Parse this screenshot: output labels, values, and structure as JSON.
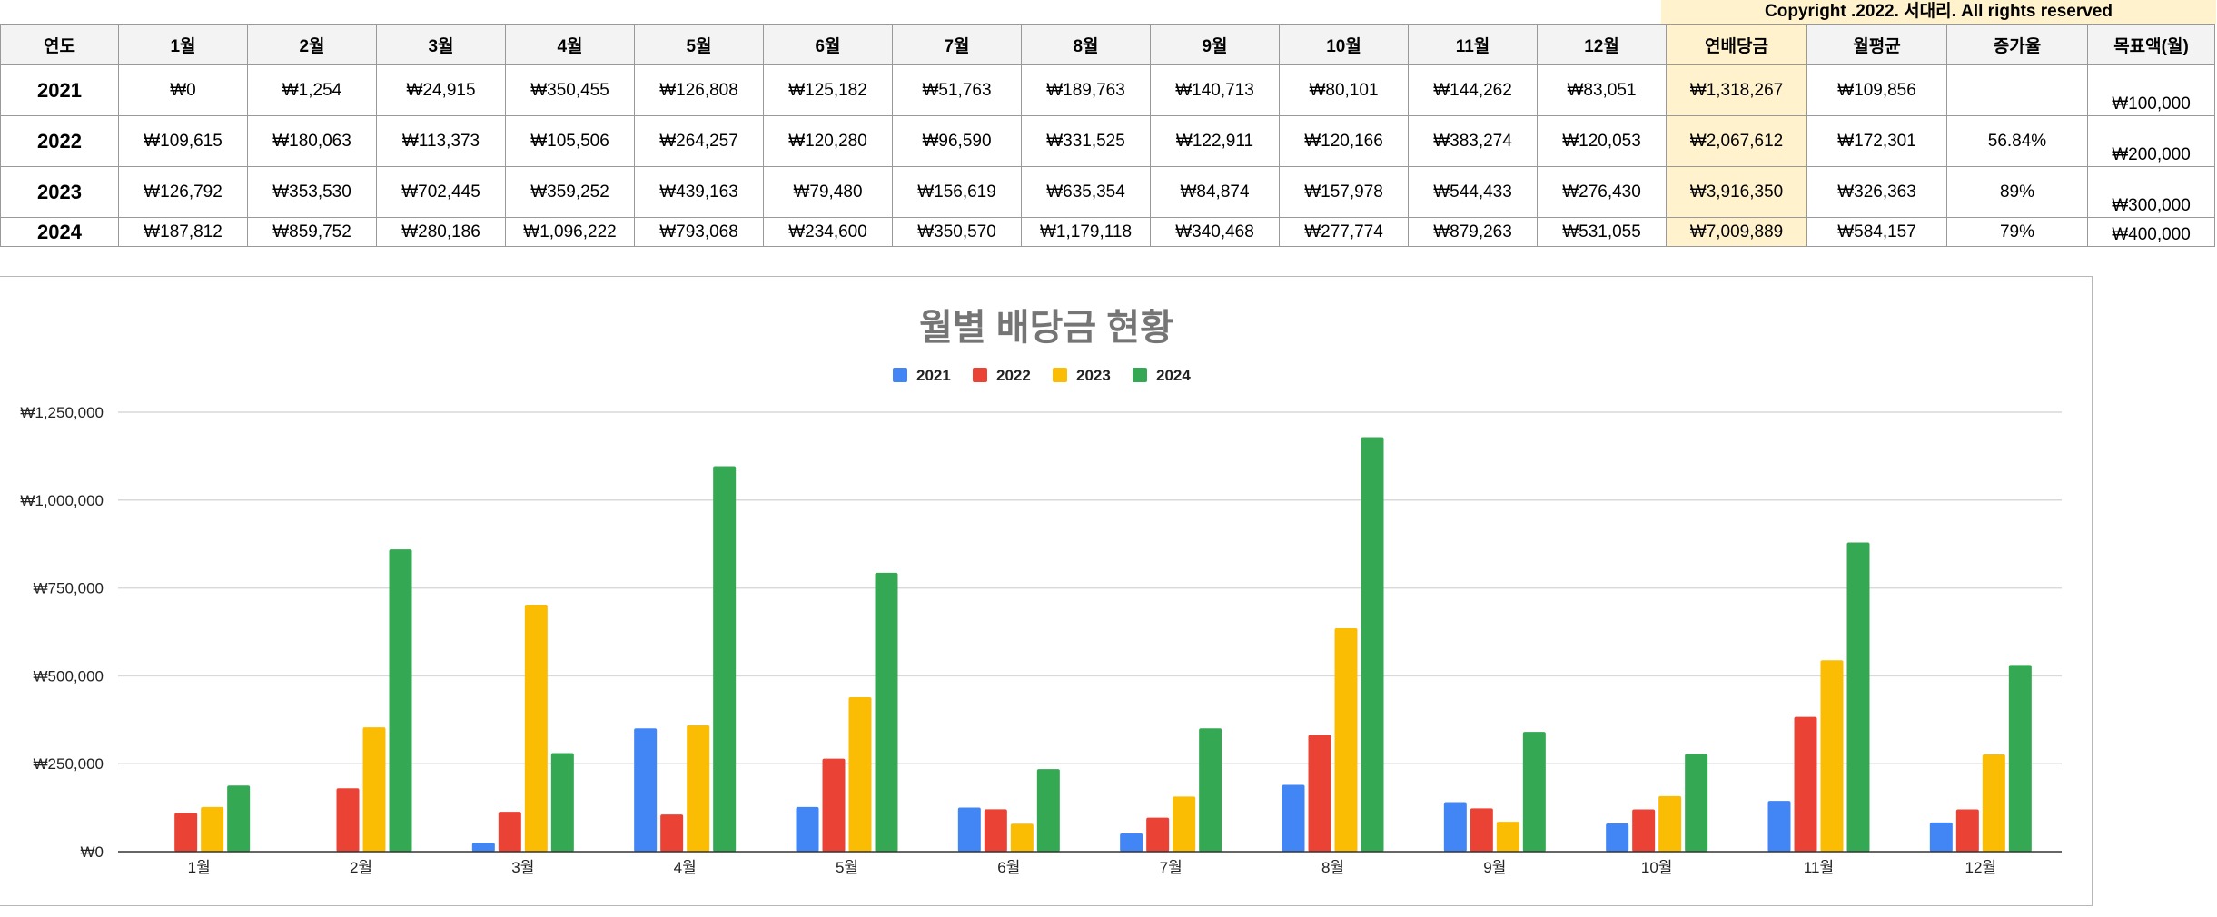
{
  "copyright": "Copyright .2022. 서대리. All rights reserved",
  "table": {
    "headers": [
      "연도",
      "1월",
      "2월",
      "3월",
      "4월",
      "5월",
      "6월",
      "7월",
      "8월",
      "9월",
      "10월",
      "11월",
      "12월",
      "연배당금",
      "월평균",
      "증가율",
      "목표액(월)"
    ],
    "rows": [
      {
        "year": "2021",
        "months": [
          "₩0",
          "₩1,254",
          "₩24,915",
          "₩350,455",
          "₩126,808",
          "₩125,182",
          "₩51,763",
          "₩189,763",
          "₩140,713",
          "₩80,101",
          "₩144,262",
          "₩83,051"
        ],
        "annual": "₩1,318,267",
        "avg": "₩109,856",
        "growth": "",
        "target": "₩100,000"
      },
      {
        "year": "2022",
        "months": [
          "₩109,615",
          "₩180,063",
          "₩113,373",
          "₩105,506",
          "₩264,257",
          "₩120,280",
          "₩96,590",
          "₩331,525",
          "₩122,911",
          "₩120,166",
          "₩383,274",
          "₩120,053"
        ],
        "annual": "₩2,067,612",
        "avg": "₩172,301",
        "growth": "56.84%",
        "target": "₩200,000"
      },
      {
        "year": "2023",
        "months": [
          "₩126,792",
          "₩353,530",
          "₩702,445",
          "₩359,252",
          "₩439,163",
          "₩79,480",
          "₩156,619",
          "₩635,354",
          "₩84,874",
          "₩157,978",
          "₩544,433",
          "₩276,430"
        ],
        "annual": "₩3,916,350",
        "avg": "₩326,363",
        "growth": "89%",
        "target": "₩300,000"
      },
      {
        "year": "2024",
        "months": [
          "₩187,812",
          "₩859,752",
          "₩280,186",
          "₩1,096,222",
          "₩793,068",
          "₩234,600",
          "₩350,570",
          "₩1,179,118",
          "₩340,468",
          "₩277,774",
          "₩879,263",
          "₩531,055"
        ],
        "annual": "₩7,009,889",
        "avg": "₩584,157",
        "growth": "79%",
        "target": "₩400,000"
      }
    ]
  },
  "chart_data": {
    "type": "bar",
    "title": "월별 배당금 현황",
    "categories": [
      "1월",
      "2월",
      "3월",
      "4월",
      "5월",
      "6월",
      "7월",
      "8월",
      "9월",
      "10월",
      "11월",
      "12월"
    ],
    "series": [
      {
        "name": "2021",
        "color": "#4285f4",
        "values": [
          0,
          1254,
          24915,
          350455,
          126808,
          125182,
          51763,
          189763,
          140713,
          80101,
          144262,
          83051
        ]
      },
      {
        "name": "2022",
        "color": "#ea4335",
        "values": [
          109615,
          180063,
          113373,
          105506,
          264257,
          120280,
          96590,
          331525,
          122911,
          120166,
          383274,
          120053
        ]
      },
      {
        "name": "2023",
        "color": "#fbbc04",
        "values": [
          126792,
          353530,
          702445,
          359252,
          439163,
          79480,
          156619,
          635354,
          84874,
          157978,
          544433,
          276430
        ]
      },
      {
        "name": "2024",
        "color": "#34a853",
        "values": [
          187812,
          859752,
          280186,
          1096222,
          793068,
          234600,
          350570,
          1179118,
          340468,
          277774,
          879263,
          531055
        ]
      }
    ],
    "yticks": [
      "₩0",
      "₩250,000",
      "₩500,000",
      "₩750,000",
      "₩1,000,000",
      "₩1,250,000"
    ],
    "ylim": [
      0,
      1250000
    ],
    "legend_position": "top",
    "grid": true
  }
}
